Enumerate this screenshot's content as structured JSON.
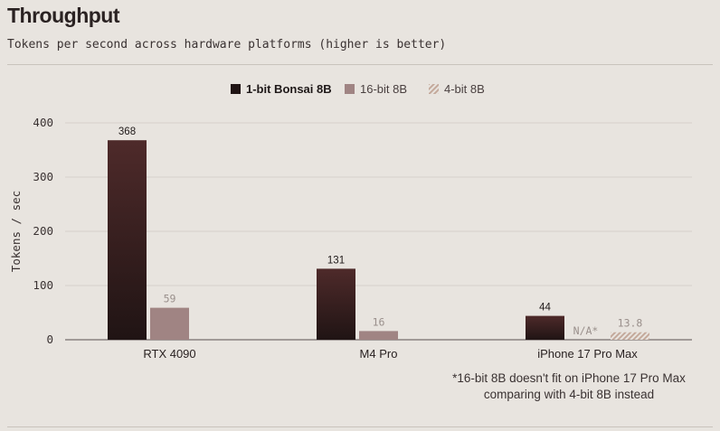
{
  "header": {
    "title": "Throughput",
    "subtitle": "Tokens per second across hardware platforms (higher is better)"
  },
  "footnote": {
    "line1": "*16-bit 8B doesn't fit on iPhone 17 Pro Max",
    "line2": "comparing with 4-bit 8B instead"
  },
  "colors": {
    "background": "#e8e4df",
    "bonsai_top": "#4e2a2a",
    "bonsai_bottom": "#201414",
    "fp16": "#a08483",
    "int4_stripe": "#c4a99b",
    "grid": "#d6d1cb",
    "muted_label": "#9a908c"
  },
  "chart_data": {
    "type": "bar",
    "categories": [
      "RTX 4090",
      "M4 Pro",
      "iPhone 17 Pro Max"
    ],
    "series": [
      {
        "name": "1-bit Bonsai 8B",
        "values": [
          368,
          131,
          44
        ],
        "labels": [
          "368",
          "131",
          "44"
        ]
      },
      {
        "name": "16-bit 8B",
        "values": [
          59,
          16,
          null
        ],
        "labels": [
          "59",
          "16",
          "N/A*"
        ]
      },
      {
        "name": "4-bit 8B",
        "values": [
          null,
          null,
          13.8
        ],
        "labels": [
          "",
          "",
          "13.8"
        ]
      }
    ],
    "ylabel": "Tokens / sec",
    "xlabel": "",
    "ylim": [
      0,
      400
    ],
    "yticks": [
      0,
      100,
      200,
      300,
      400
    ],
    "grid": true,
    "legend_position": "top-center"
  }
}
